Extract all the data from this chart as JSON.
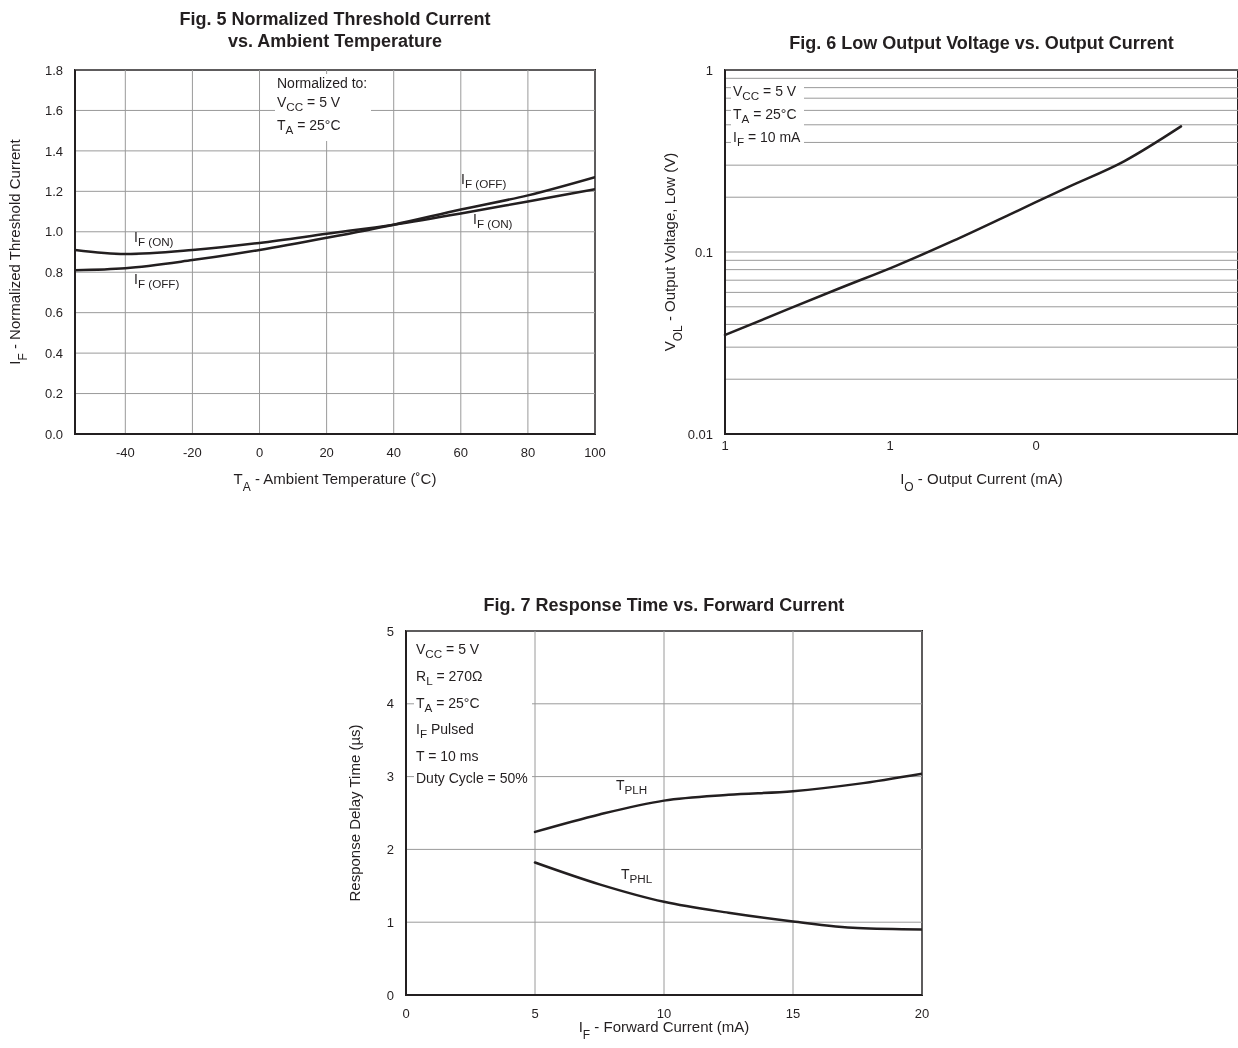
{
  "chart_data": [
    {
      "type": "line",
      "title": "Fig. 5  Normalized Threshold Current\nvs. Ambient Temperature",
      "xlabel": "T$_{A}$ - Ambient Temperature (˚C)",
      "ylabel": "I$_{F}$ - Normalized Threshold Current",
      "x": [
        -55,
        -40,
        -20,
        0,
        20,
        40,
        60,
        80,
        100
      ],
      "series": [
        {
          "name": "I$_{F (ON)}$",
          "color": "#231f20",
          "values": [
            0.91,
            0.89,
            0.91,
            0.945,
            0.99,
            1.035,
            1.09,
            1.15,
            1.21
          ]
        },
        {
          "name": "I$_{F (OFF)}$",
          "color": "#231f20",
          "values": [
            0.81,
            0.82,
            0.86,
            0.91,
            0.97,
            1.035,
            1.11,
            1.18,
            1.27
          ]
        }
      ],
      "xlim": [
        -55,
        100
      ],
      "xticks": [
        -40,
        -20,
        0,
        20,
        40,
        60,
        80,
        100
      ],
      "ylim": [
        0,
        1.8
      ],
      "yticks": [
        {
          "value": 0,
          "label": "0.0"
        },
        {
          "value": 0.2,
          "label": "0.2"
        },
        {
          "value": 0.4,
          "label": "0.4"
        },
        {
          "value": 0.6,
          "label": "0.6"
        },
        {
          "value": 0.8,
          "label": "0.8"
        },
        {
          "value": 1,
          "label": "1.0"
        },
        {
          "value": 1.2,
          "label": "1.2"
        },
        {
          "value": 1.4,
          "label": "1.4"
        },
        {
          "value": 1.6,
          "label": "1.6"
        },
        {
          "value": 1.8,
          "label": "1.8"
        }
      ],
      "grid": true,
      "annotations": [
        "Normalized to:",
        "V$_{CC}$ = 5 V",
        "T$_{A}$ = 25°C"
      ]
    },
    {
      "type": "line",
      "title": "Fig. 6  Low Output Voltage vs. Output Current",
      "xlabel": "I$_{O}$ - Output Current (mA)",
      "ylabel": "V$_{OL}$ - Output Voltage, Low (V)",
      "categories": [
        null,
        null,
        null,
        null,
        null,
        null,
        null,
        null,
        null,
        null
      ],
      "series": [
        {
          "color": "#231f20",
          "values": [
            0.035,
            0.047,
            0.063,
            0.084,
            0.115,
            0.161,
            0.226,
            0.315,
            0.49,
            null
          ]
        }
      ],
      "log": "y",
      "ylim": [
        0.01,
        1
      ],
      "yticks": [
        0.01,
        {
          "value": 0.02,
          "label": null
        },
        {
          "value": 0.03,
          "label": null
        },
        {
          "value": 0.04,
          "label": null
        },
        {
          "value": 0.05,
          "label": null
        },
        {
          "value": 0.06,
          "label": null
        },
        {
          "value": 0.07,
          "label": null
        },
        {
          "value": 0.08,
          "label": null
        },
        {
          "value": 0.09,
          "label": null
        },
        0.1,
        {
          "value": 0.2,
          "label": null
        },
        {
          "value": 0.3,
          "label": null
        },
        {
          "value": 0.4,
          "label": null
        },
        {
          "value": 0.5,
          "label": null
        },
        {
          "value": 0.6,
          "label": null
        },
        {
          "value": 0.7,
          "label": null
        },
        {
          "value": 0.8,
          "label": null
        },
        {
          "value": 0.9,
          "label": null
        },
        1
      ],
      "grid": "y",
      "annotations": [
        "V$_{CC}$ = 5 V",
        "T$_{A}$ = 25°C",
        "I$_{F}$ = 10 mA",
        "1",
        "1",
        "0"
      ]
    },
    {
      "type": "line",
      "title": "Fig. 7  Response Time vs. Forward Current",
      "xlabel": "I$_{F}$ - Forward Current (mA)",
      "ylabel": "Response Delay Time (µs)",
      "x": [
        5,
        7.5,
        10,
        12.5,
        15,
        17.5,
        20
      ],
      "series": [
        {
          "name": "T$_{PLH}$",
          "color": "#231f20",
          "values": [
            2.24,
            2.48,
            2.67,
            2.75,
            2.8,
            2.9,
            3.04
          ]
        },
        {
          "name": "T$_{PHL}$",
          "color": "#231f20",
          "values": [
            1.82,
            1.52,
            1.28,
            1.13,
            1.01,
            0.92,
            0.9
          ]
        }
      ],
      "xlim": [
        0,
        20
      ],
      "xticks": [
        0,
        5,
        10,
        15,
        20
      ],
      "ylim": [
        0,
        5
      ],
      "yticks": [
        0,
        1,
        2,
        3,
        4,
        5
      ],
      "grid": true,
      "annotations": [
        "V$_{CC}$ = 5 V",
        "R$_{L}$ = 270Ω",
        "T$_{A}$ = 25°C",
        "I$_{F}$ Pulsed",
        "T = 10 ms",
        "Duty Cycle = 50%"
      ]
    }
  ]
}
